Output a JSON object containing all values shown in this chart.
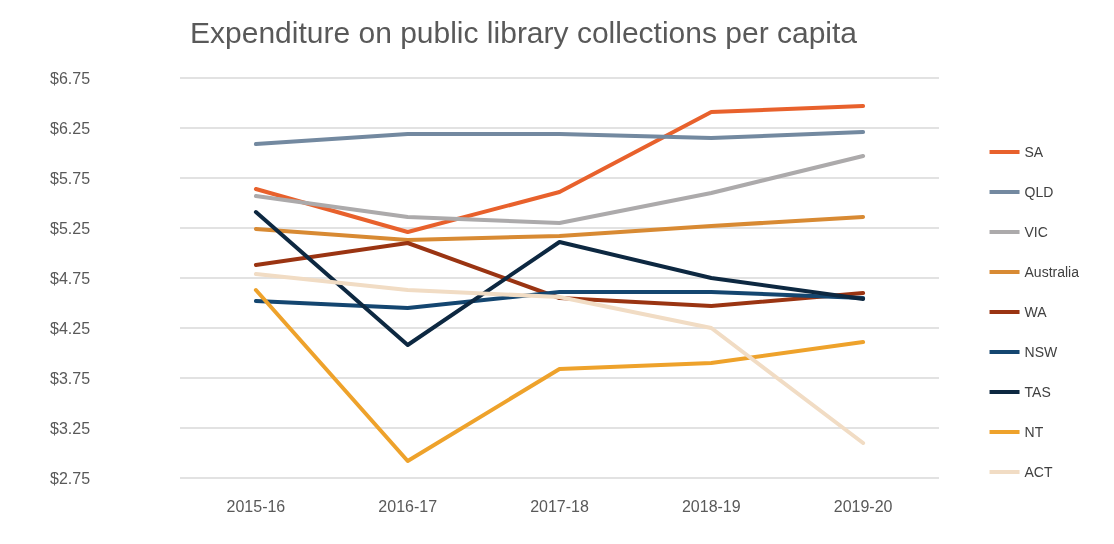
{
  "chart_data": {
    "type": "line",
    "title": "Expenditure on public library collections per capita",
    "categories": [
      "2015-16",
      "2016-17",
      "2017-18",
      "2018-19",
      "2019-20"
    ],
    "series": [
      {
        "name": "SA",
        "color": "#e8612c",
        "values": [
          5.64,
          5.21,
          5.61,
          6.41,
          6.47
        ]
      },
      {
        "name": "QLD",
        "color": "#7389a0",
        "values": [
          6.09,
          6.19,
          6.19,
          6.15,
          6.21
        ]
      },
      {
        "name": "VIC",
        "color": "#acaaab",
        "values": [
          5.57,
          5.36,
          5.3,
          5.6,
          5.97
        ]
      },
      {
        "name": "Australia",
        "color": "#d88a33",
        "values": [
          5.24,
          5.13,
          5.17,
          5.27,
          5.36
        ]
      },
      {
        "name": "WA",
        "color": "#9a3412",
        "values": [
          4.88,
          5.1,
          4.55,
          4.47,
          4.6
        ]
      },
      {
        "name": "NSW",
        "color": "#144670",
        "values": [
          4.52,
          4.45,
          4.61,
          4.61,
          4.55
        ]
      },
      {
        "name": "TAS",
        "color": "#0d2841",
        "values": [
          5.41,
          4.08,
          5.11,
          4.75,
          4.54
        ]
      },
      {
        "name": "NT",
        "color": "#eea22b",
        "values": [
          4.63,
          2.92,
          3.84,
          3.9,
          4.11
        ]
      },
      {
        "name": "ACT",
        "color": "#f1dcc4",
        "values": [
          4.79,
          4.63,
          4.56,
          4.25,
          3.1
        ]
      }
    ],
    "ylim": [
      2.75,
      6.75
    ],
    "yticks": [
      {
        "value": 2.75,
        "label": "$2.75"
      },
      {
        "value": 3.25,
        "label": "$3.25"
      },
      {
        "value": 3.75,
        "label": "$3.75"
      },
      {
        "value": 4.25,
        "label": "$4.25"
      },
      {
        "value": 4.75,
        "label": "$4.75"
      },
      {
        "value": 5.25,
        "label": "$5.25"
      },
      {
        "value": 5.75,
        "label": "$5.75"
      },
      {
        "value": 6.25,
        "label": "$6.25"
      },
      {
        "value": 6.75,
        "label": "$6.75"
      }
    ],
    "grid": "y",
    "legend": "right",
    "marker": "none",
    "line_style": "solid"
  }
}
